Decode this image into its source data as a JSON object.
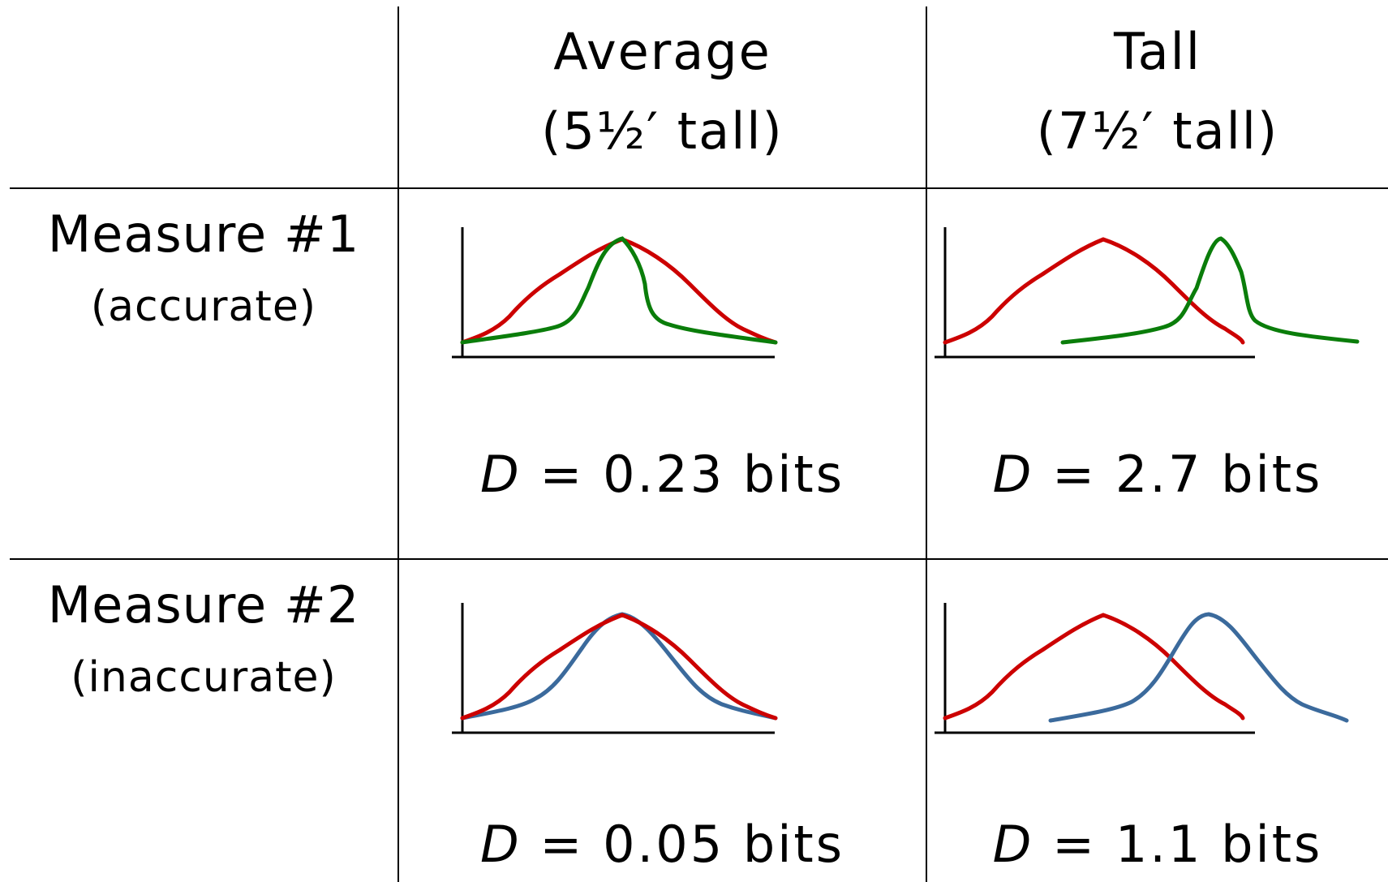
{
  "columns": [
    {
      "title": "Average",
      "subtitle": "(5½′ tall)"
    },
    {
      "title": "Tall",
      "subtitle": "(7½′ tall)"
    }
  ],
  "rows": [
    {
      "title": "Measure #1",
      "subtitle": "(accurate)"
    },
    {
      "title": "Measure #2",
      "subtitle": "(inaccurate)"
    }
  ],
  "cells": [
    {
      "d_symbol": "D",
      "eq": "=",
      "value": "0.23 bits",
      "curves": [
        "prior-red",
        "posterior-green"
      ]
    },
    {
      "d_symbol": "D",
      "eq": "=",
      "value": "2.7 bits",
      "curves": [
        "prior-red",
        "posterior-green"
      ]
    },
    {
      "d_symbol": "D",
      "eq": "=",
      "value": "0.05 bits",
      "curves": [
        "prior-red",
        "posterior-blue"
      ]
    },
    {
      "d_symbol": "D",
      "eq": "=",
      "value": "1.1 bits",
      "curves": [
        "prior-red",
        "posterior-blue"
      ]
    }
  ],
  "colors": {
    "red": "#cc0000",
    "green": "#0a7d0a",
    "blue": "#3b6a9c",
    "axis": "#000000"
  }
}
